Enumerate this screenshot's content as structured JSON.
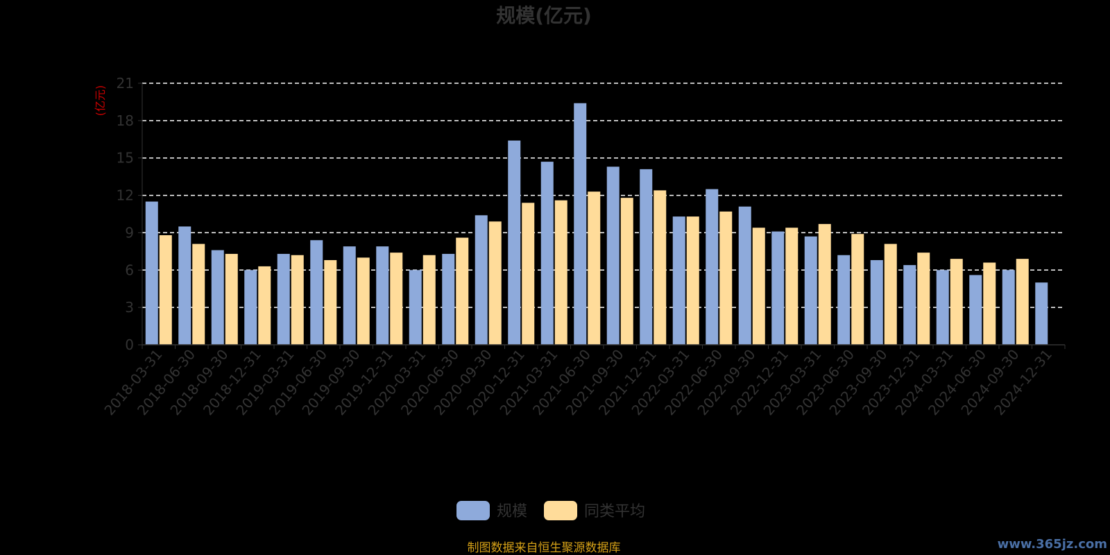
{
  "chart_data": {
    "type": "bar",
    "title": "规模(亿元)",
    "ylabel": "(亿元)",
    "ylim": [
      0,
      21
    ],
    "yticks": [
      0,
      3,
      6,
      9,
      12,
      15,
      18,
      21
    ],
    "grid": true,
    "legend_position": "bottom",
    "categories": [
      "2018-03-31",
      "2018-06-30",
      "2018-09-30",
      "2018-12-31",
      "2019-03-31",
      "2019-06-30",
      "2019-09-30",
      "2019-12-31",
      "2020-03-31",
      "2020-06-30",
      "2020-09-30",
      "2020-12-31",
      "2021-03-31",
      "2021-06-30",
      "2021-09-30",
      "2021-12-31",
      "2022-03-31",
      "2022-06-30",
      "2022-09-30",
      "2022-12-31",
      "2023-03-31",
      "2023-06-30",
      "2023-09-30",
      "2023-12-31",
      "2024-03-31",
      "2024-06-30",
      "2024-09-30",
      "2024-12-31"
    ],
    "series": [
      {
        "name": "规模",
        "color": "#8eaadb",
        "values": [
          11.5,
          9.5,
          7.6,
          6.0,
          7.3,
          8.4,
          7.9,
          7.9,
          6.0,
          7.3,
          10.4,
          16.4,
          14.7,
          19.4,
          14.3,
          14.1,
          10.3,
          12.5,
          11.1,
          9.1,
          8.7,
          7.2,
          6.8,
          6.4,
          6.0,
          5.6,
          6.0,
          5.0
        ]
      },
      {
        "name": "同类平均",
        "color": "#ffdc9a",
        "values": [
          8.8,
          8.1,
          7.3,
          6.3,
          7.2,
          6.8,
          7.0,
          7.4,
          7.2,
          8.6,
          9.9,
          11.4,
          11.6,
          12.3,
          11.8,
          12.4,
          10.3,
          10.7,
          9.4,
          9.4,
          9.7,
          8.9,
          8.1,
          7.4,
          6.9,
          6.6,
          6.9,
          null
        ]
      }
    ]
  },
  "source_text": "制图数据来自恒生聚源数据库",
  "watermark_text": "www.365jz.com"
}
